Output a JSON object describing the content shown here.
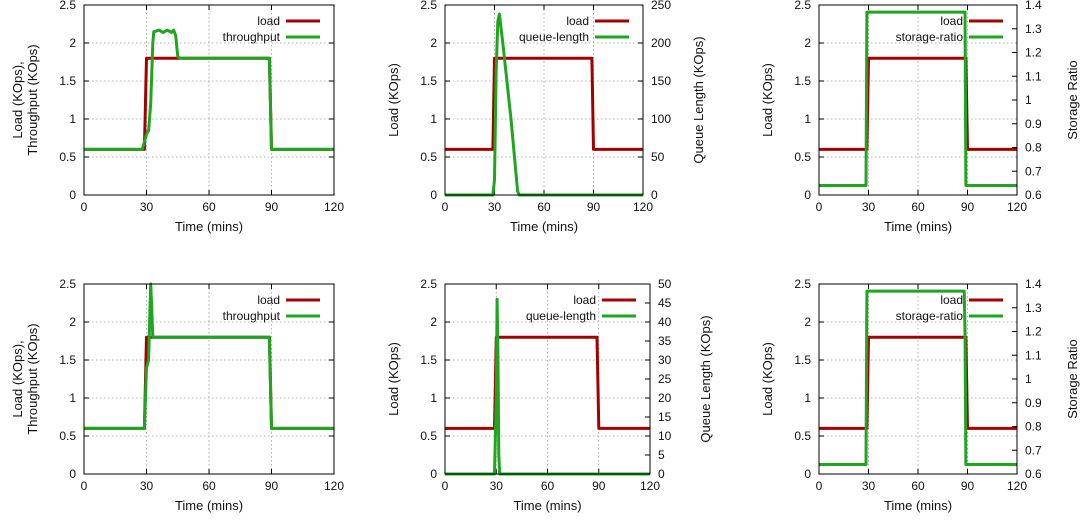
{
  "chart_data": [
    {
      "type": "line",
      "xlabel": "Time (mins)",
      "ylabel": [
        "Load (KOps),",
        "Throughput (KOps)"
      ],
      "xlim": [
        0,
        120
      ],
      "ylim": [
        0,
        2.5
      ],
      "xticks": [
        "0",
        "30",
        "60",
        "90",
        "120"
      ],
      "yticks": [
        "0",
        "0.5",
        "1",
        "1.5",
        "2",
        "2.5"
      ],
      "grid": true,
      "legend": "top-right",
      "series": [
        {
          "name": "load",
          "color": "#a50000",
          "axis": "left",
          "x": [
            0,
            29,
            30,
            89,
            90,
            120
          ],
          "y": [
            0.6,
            0.6,
            1.8,
            1.8,
            0.6,
            0.6
          ]
        },
        {
          "name": "throughput",
          "color": "#1fa51f",
          "axis": "left",
          "x": [
            0,
            28,
            29,
            30,
            31,
            32,
            33,
            33.5,
            34,
            36,
            38,
            40,
            42,
            43,
            44,
            45,
            46,
            50,
            89,
            90,
            120
          ],
          "y": [
            0.6,
            0.6,
            0.7,
            0.8,
            0.85,
            1.2,
            2.0,
            2.15,
            2.15,
            2.17,
            2.14,
            2.17,
            2.14,
            2.17,
            2.1,
            1.82,
            1.8,
            1.8,
            1.8,
            0.6,
            0.6
          ]
        }
      ]
    },
    {
      "type": "line",
      "xlabel": "Time (mins)",
      "ylabel": [
        "Load (KOps)"
      ],
      "y2label": "Queue Length (KOps)",
      "xlim": [
        0,
        120
      ],
      "ylim": [
        0,
        2.5
      ],
      "y2lim": [
        0,
        250
      ],
      "xticks": [
        "0",
        "30",
        "60",
        "90",
        "120"
      ],
      "yticks": [
        "0",
        "0.5",
        "1",
        "1.5",
        "2",
        "2.5"
      ],
      "y2ticks": [
        "0",
        "50",
        "100",
        "150",
        "200",
        "250"
      ],
      "grid": true,
      "legend": "top-right",
      "series": [
        {
          "name": "load",
          "color": "#a50000",
          "axis": "left",
          "x": [
            0,
            29,
            30,
            89,
            90,
            120
          ],
          "y": [
            0.6,
            0.6,
            1.8,
            1.8,
            0.6,
            0.6
          ]
        },
        {
          "name": "queue-length",
          "color": "#1fa51f",
          "axis": "right",
          "x": [
            0,
            29,
            30,
            31,
            32,
            33,
            35,
            40,
            44,
            45,
            120
          ],
          "y": [
            0,
            0,
            20,
            160,
            228,
            238,
            200,
            100,
            5,
            0,
            0
          ]
        }
      ]
    },
    {
      "type": "line",
      "xlabel": "Time (mins)",
      "ylabel": [
        "Load (KOps)"
      ],
      "y2label": "Storage Ratio",
      "xlim": [
        0,
        120
      ],
      "ylim": [
        0,
        2.5
      ],
      "y2lim": [
        0.6,
        1.4
      ],
      "xticks": [
        "0",
        "30",
        "60",
        "90",
        "120"
      ],
      "yticks": [
        "0",
        "0.5",
        "1",
        "1.5",
        "2",
        "2.5"
      ],
      "y2ticks": [
        "0.6",
        "0.7",
        "0.8",
        "0.9",
        "1",
        "1.1",
        "1.2",
        "1.3",
        "1.4"
      ],
      "grid": true,
      "legend": "top-right",
      "series": [
        {
          "name": "load",
          "color": "#a50000",
          "axis": "left",
          "x": [
            0,
            29,
            30,
            89,
            90,
            120
          ],
          "y": [
            0.6,
            0.6,
            1.8,
            1.8,
            0.6,
            0.6
          ]
        },
        {
          "name": "storage-ratio",
          "color": "#1fa51f",
          "axis": "right",
          "x": [
            0,
            28.5,
            29,
            88.5,
            89,
            120
          ],
          "y": [
            0.64,
            0.64,
            1.37,
            1.37,
            0.64,
            0.64
          ]
        }
      ]
    },
    {
      "type": "line",
      "xlabel": "Time (mins)",
      "ylabel": [
        "Load (KOps),",
        "Throughput (KOps)"
      ],
      "xlim": [
        0,
        120
      ],
      "ylim": [
        0,
        2.5
      ],
      "xticks": [
        "0",
        "30",
        "60",
        "90",
        "120"
      ],
      "yticks": [
        "0",
        "0.5",
        "1",
        "1.5",
        "2",
        "2.5"
      ],
      "grid": true,
      "legend": "top-right",
      "series": [
        {
          "name": "load",
          "color": "#a50000",
          "axis": "left",
          "x": [
            0,
            29,
            30,
            89,
            90,
            120
          ],
          "y": [
            0.6,
            0.6,
            1.8,
            1.8,
            0.6,
            0.6
          ]
        },
        {
          "name": "throughput",
          "color": "#1fa51f",
          "axis": "left",
          "x": [
            0,
            29,
            30,
            31,
            31.5,
            32,
            32.5,
            33,
            34,
            89,
            90,
            120
          ],
          "y": [
            0.6,
            0.6,
            1.4,
            1.5,
            2.0,
            2.5,
            2.2,
            1.8,
            1.8,
            1.8,
            0.6,
            0.6
          ]
        }
      ]
    },
    {
      "type": "line",
      "xlabel": "Time (mins)",
      "ylabel": [
        "Load (KOps)"
      ],
      "y2label": "Queue Length (KOps)",
      "xlim": [
        0,
        120
      ],
      "ylim": [
        0,
        2.5
      ],
      "y2lim": [
        0,
        50
      ],
      "xticks": [
        "0",
        "30",
        "60",
        "90",
        "120"
      ],
      "yticks": [
        "0",
        "0.5",
        "1",
        "1.5",
        "2",
        "2.5"
      ],
      "y2ticks": [
        "0",
        "5",
        "10",
        "15",
        "20",
        "25",
        "30",
        "35",
        "40",
        "45",
        "50"
      ],
      "grid": true,
      "legend": "top-right",
      "series": [
        {
          "name": "load",
          "color": "#a50000",
          "axis": "left",
          "x": [
            0,
            29,
            30,
            89,
            90,
            120
          ],
          "y": [
            0.6,
            0.6,
            1.8,
            1.8,
            0.6,
            0.6
          ]
        },
        {
          "name": "queue-length",
          "color": "#1fa51f",
          "axis": "right",
          "x": [
            0,
            29,
            30,
            30.5,
            31,
            31.5,
            32,
            120
          ],
          "y": [
            0,
            0,
            20,
            46,
            30,
            5,
            0,
            0
          ]
        }
      ]
    },
    {
      "type": "line",
      "xlabel": "Time (mins)",
      "ylabel": [
        "Load (KOps)"
      ],
      "y2label": "Storage Ratio",
      "xlim": [
        0,
        120
      ],
      "ylim": [
        0,
        2.5
      ],
      "y2lim": [
        0.6,
        1.4
      ],
      "xticks": [
        "0",
        "30",
        "60",
        "90",
        "120"
      ],
      "yticks": [
        "0",
        "0.5",
        "1",
        "1.5",
        "2",
        "2.5"
      ],
      "y2ticks": [
        "0.6",
        "0.7",
        "0.8",
        "0.9",
        "1",
        "1.1",
        "1.2",
        "1.3",
        "1.4"
      ],
      "grid": true,
      "legend": "top-right",
      "series": [
        {
          "name": "load",
          "color": "#a50000",
          "axis": "left",
          "x": [
            0,
            29,
            30,
            89,
            90,
            120
          ],
          "y": [
            0.6,
            0.6,
            1.8,
            1.8,
            0.6,
            0.6
          ]
        },
        {
          "name": "storage-ratio",
          "color": "#1fa51f",
          "axis": "right",
          "x": [
            0,
            28.5,
            29,
            88,
            88.5,
            89,
            120
          ],
          "y": [
            0.64,
            0.64,
            1.37,
            1.37,
            1.2,
            0.64,
            0.64
          ]
        }
      ]
    }
  ]
}
